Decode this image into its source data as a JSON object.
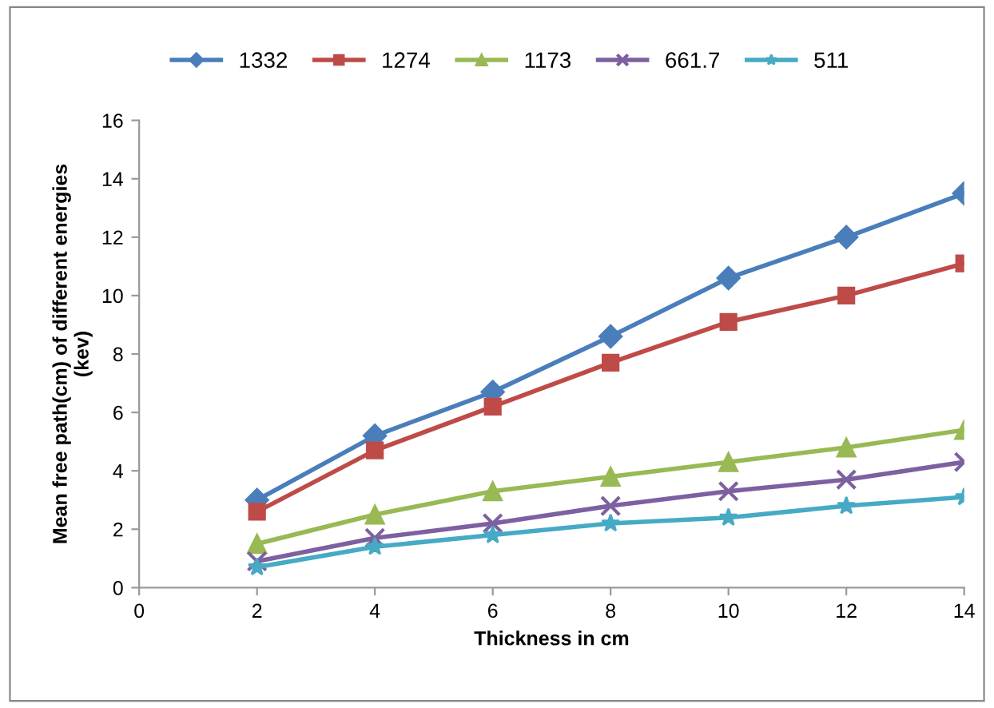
{
  "chart_data": {
    "type": "line",
    "xlabel": "Thickness in cm",
    "ylabel": "Mean free path(cm) of different energies\n(kev)",
    "x": [
      2,
      4,
      6,
      8,
      10,
      12,
      14
    ],
    "series": [
      {
        "name": "1332",
        "color": "#4a7ebb",
        "marker": "diamond",
        "values": [
          3.0,
          5.2,
          6.7,
          8.6,
          10.6,
          12.0,
          13.5
        ]
      },
      {
        "name": "1274",
        "color": "#be4b48",
        "marker": "square",
        "values": [
          2.6,
          4.7,
          6.2,
          7.7,
          9.1,
          10.0,
          11.1
        ]
      },
      {
        "name": "1173",
        "color": "#98b954",
        "marker": "triangle",
        "values": [
          1.5,
          2.5,
          3.3,
          3.8,
          4.3,
          4.8,
          5.4
        ]
      },
      {
        "name": "661.7",
        "color": "#7d60a0",
        "marker": "cross",
        "values": [
          0.9,
          1.7,
          2.2,
          2.8,
          3.3,
          3.7,
          4.3
        ]
      },
      {
        "name": "511",
        "color": "#46aac5",
        "marker": "star",
        "values": [
          0.7,
          1.4,
          1.8,
          2.2,
          2.4,
          2.8,
          3.1
        ]
      }
    ],
    "xlim": [
      0,
      14
    ],
    "xticks": [
      0,
      2,
      4,
      6,
      8,
      10,
      12,
      14
    ],
    "ylim": [
      0,
      16
    ],
    "yticks": [
      0,
      2,
      4,
      6,
      8,
      10,
      12,
      14,
      16
    ],
    "grid": false,
    "legend": "top",
    "line_style": "solid"
  }
}
